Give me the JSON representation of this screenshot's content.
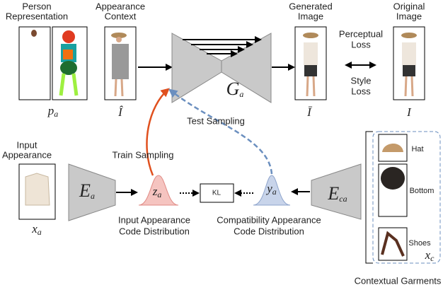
{
  "top": {
    "person_representation": [
      "Person",
      "Representation"
    ],
    "appearance_context": [
      "Appearance",
      "Context"
    ],
    "generated_image": [
      "Generated",
      "Image"
    ],
    "original_image": [
      "Original",
      "Image"
    ],
    "perceptual_loss": [
      "Perceptual",
      "Loss"
    ],
    "style_loss": [
      "Style",
      "Loss"
    ],
    "generator": {
      "base": "G",
      "sub": "a"
    },
    "p_a": {
      "base": "p",
      "sub": "a"
    },
    "i_hat": "Î",
    "i_bar": "Ī",
    "i": "I"
  },
  "sampling": {
    "test": "Test Sampling",
    "train": "Train Sampling"
  },
  "bottom": {
    "input_appearance": [
      "Input",
      "Appearance"
    ],
    "x_a": {
      "base": "x",
      "sub": "a"
    },
    "encoder_a": {
      "base": "E",
      "sub": "a"
    },
    "z_a": {
      "base": "z",
      "sub": "a"
    },
    "kl": "KL",
    "y_a": {
      "base": "y",
      "sub": "a"
    },
    "encoder_ca": {
      "base": "E",
      "sub": "ca"
    },
    "input_code": [
      "Input Appearance",
      "Code Distribution"
    ],
    "compat_code": [
      "Compatibility Appearance",
      "Code Distribution"
    ]
  },
  "garments": {
    "items": [
      "Hat",
      "Bottom",
      "Shoes"
    ],
    "x_c": {
      "base": "x",
      "sub": "c"
    },
    "caption": "Contextual Garments"
  }
}
